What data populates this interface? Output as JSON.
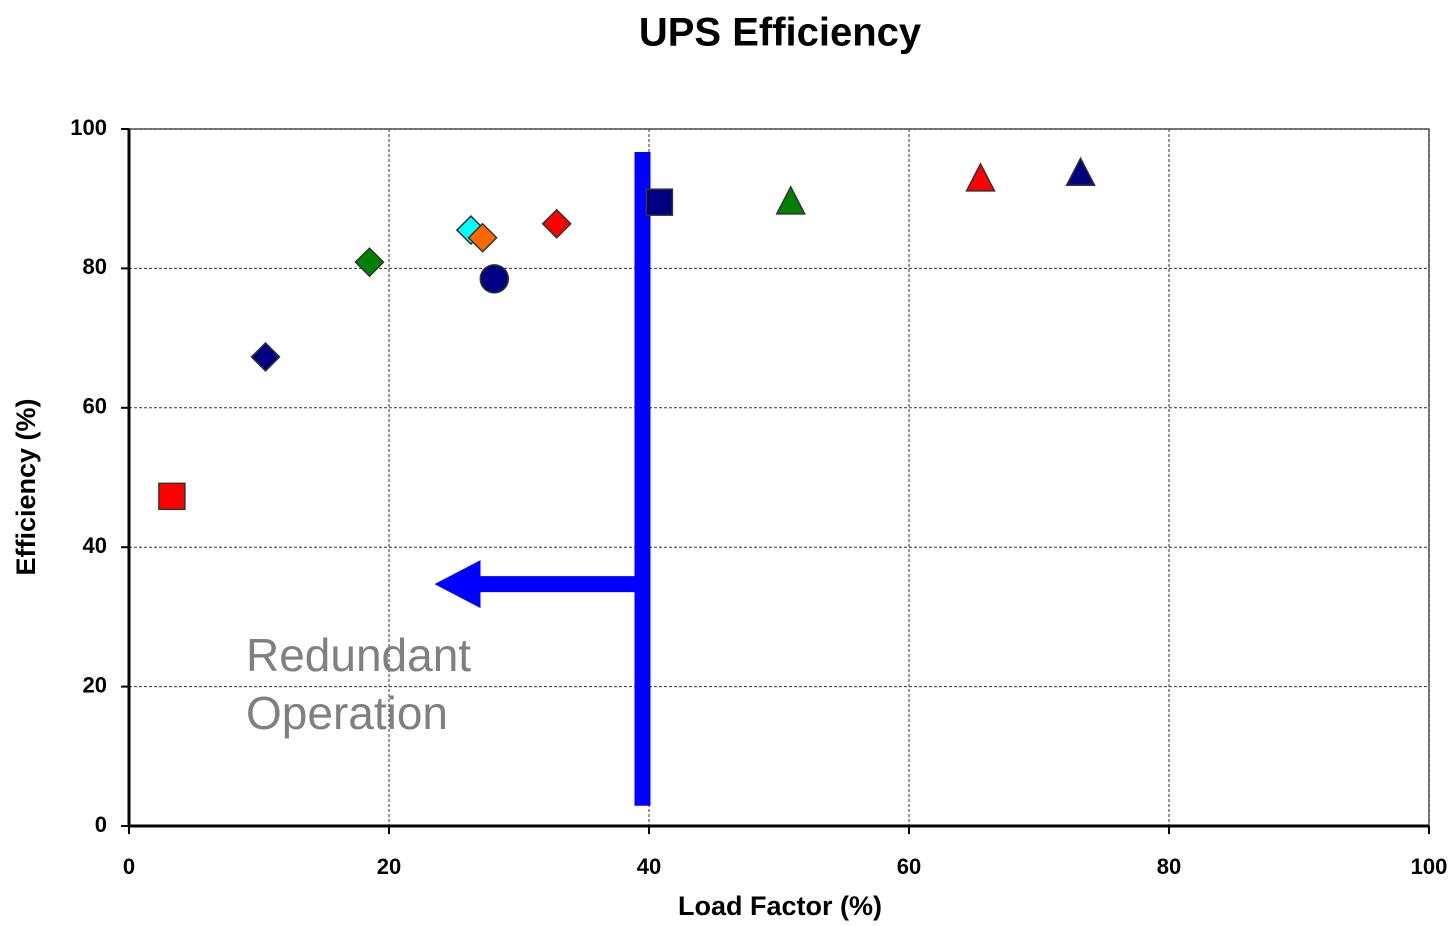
{
  "chart_data": {
    "type": "scatter",
    "title": "UPS Efficiency",
    "xlabel": "Load Factor (%)",
    "ylabel": "Efficiency (%)",
    "xlim": [
      0,
      100
    ],
    "ylim": [
      0,
      100
    ],
    "xticks": [
      0,
      20,
      40,
      60,
      80,
      100
    ],
    "yticks": [
      0,
      20,
      40,
      60,
      80,
      100
    ],
    "grid": true,
    "points": [
      {
        "x": 3.3,
        "y": 47.3,
        "color": "#ff0000",
        "marker": "square"
      },
      {
        "x": 10.5,
        "y": 67.3,
        "color": "#000080",
        "marker": "diamond"
      },
      {
        "x": 18.5,
        "y": 80.9,
        "color": "#008000",
        "marker": "diamond"
      },
      {
        "x": 26.3,
        "y": 85.5,
        "color": "#00ffff",
        "marker": "diamond"
      },
      {
        "x": 27.2,
        "y": 84.4,
        "color": "#ff6600",
        "marker": "diamond"
      },
      {
        "x": 28.1,
        "y": 78.5,
        "color": "#000080",
        "marker": "circle"
      },
      {
        "x": 32.9,
        "y": 86.4,
        "color": "#ff0000",
        "marker": "diamond"
      },
      {
        "x": 40.8,
        "y": 89.5,
        "color": "#000080",
        "marker": "square"
      },
      {
        "x": 50.9,
        "y": 89.4,
        "color": "#008000",
        "marker": "triangle"
      },
      {
        "x": 65.5,
        "y": 92.7,
        "color": "#ff0000",
        "marker": "triangle"
      },
      {
        "x": 73.2,
        "y": 93.5,
        "color": "#000080",
        "marker": "triangle"
      }
    ],
    "reference_line": {
      "x": 39.5,
      "ymin": 2.9,
      "ymax": 96.7,
      "color": "#0000ff"
    },
    "arrow": {
      "x_from": 39.5,
      "x_to": 23.5,
      "y": 34.7,
      "color": "#0000ff"
    },
    "annotation": {
      "lines": [
        "Redundant",
        "Operation"
      ],
      "x": 9,
      "y": 24,
      "color": "#808080"
    }
  }
}
